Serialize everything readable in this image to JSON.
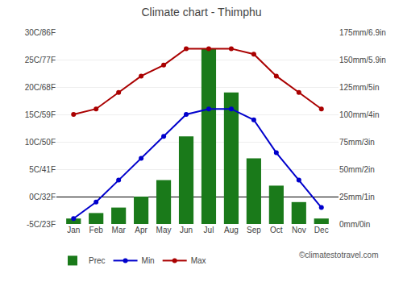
{
  "chart_data": {
    "type": "bar",
    "title": "Climate chart - Thimphu",
    "categories": [
      "Jan",
      "Feb",
      "Mar",
      "Apr",
      "May",
      "Jun",
      "Jul",
      "Aug",
      "Sep",
      "Oct",
      "Nov",
      "Dec"
    ],
    "series": [
      {
        "name": "Prec",
        "type": "bar",
        "axis": "y2",
        "color": "#1a7a1a",
        "values": [
          5,
          10,
          15,
          25,
          40,
          80,
          160,
          120,
          60,
          35,
          20,
          5
        ]
      },
      {
        "name": "Min",
        "type": "line",
        "color": "#0000cc",
        "marker": "circle",
        "values": [
          -4,
          -1,
          3,
          7,
          11,
          15,
          16,
          16,
          14,
          8,
          3,
          -2
        ]
      },
      {
        "name": "Max",
        "type": "line",
        "color": "#aa0000",
        "marker": "circle",
        "values": [
          15,
          16,
          19,
          22,
          24,
          27,
          27,
          27,
          26,
          22,
          19,
          16
        ]
      }
    ],
    "ylim": [
      -5,
      30
    ],
    "yticks": [
      {
        "value": -5,
        "label": "-5C/23F"
      },
      {
        "value": 0,
        "label": "0C/32F"
      },
      {
        "value": 5,
        "label": "5C/41F"
      },
      {
        "value": 10,
        "label": "10C/50F"
      },
      {
        "value": 15,
        "label": "15C/59F"
      },
      {
        "value": 20,
        "label": "20C/68F"
      },
      {
        "value": 25,
        "label": "25C/77F"
      },
      {
        "value": 30,
        "label": "30C/86F"
      }
    ],
    "y2lim": [
      0,
      175
    ],
    "y2ticks": [
      {
        "value": 0,
        "label": "0mm/0in"
      },
      {
        "value": 25,
        "label": "25mm/1in"
      },
      {
        "value": 50,
        "label": "50mm/2in"
      },
      {
        "value": 75,
        "label": "75mm/3in"
      },
      {
        "value": 100,
        "label": "100mm/4in"
      },
      {
        "value": 125,
        "label": "125mm/5in"
      },
      {
        "value": 150,
        "label": "150mm/5.9in"
      },
      {
        "value": 175,
        "label": "175mm/6.9in"
      }
    ],
    "grid": true,
    "legend": "lower left",
    "annotations": [
      "©climatestotravel.com"
    ]
  }
}
